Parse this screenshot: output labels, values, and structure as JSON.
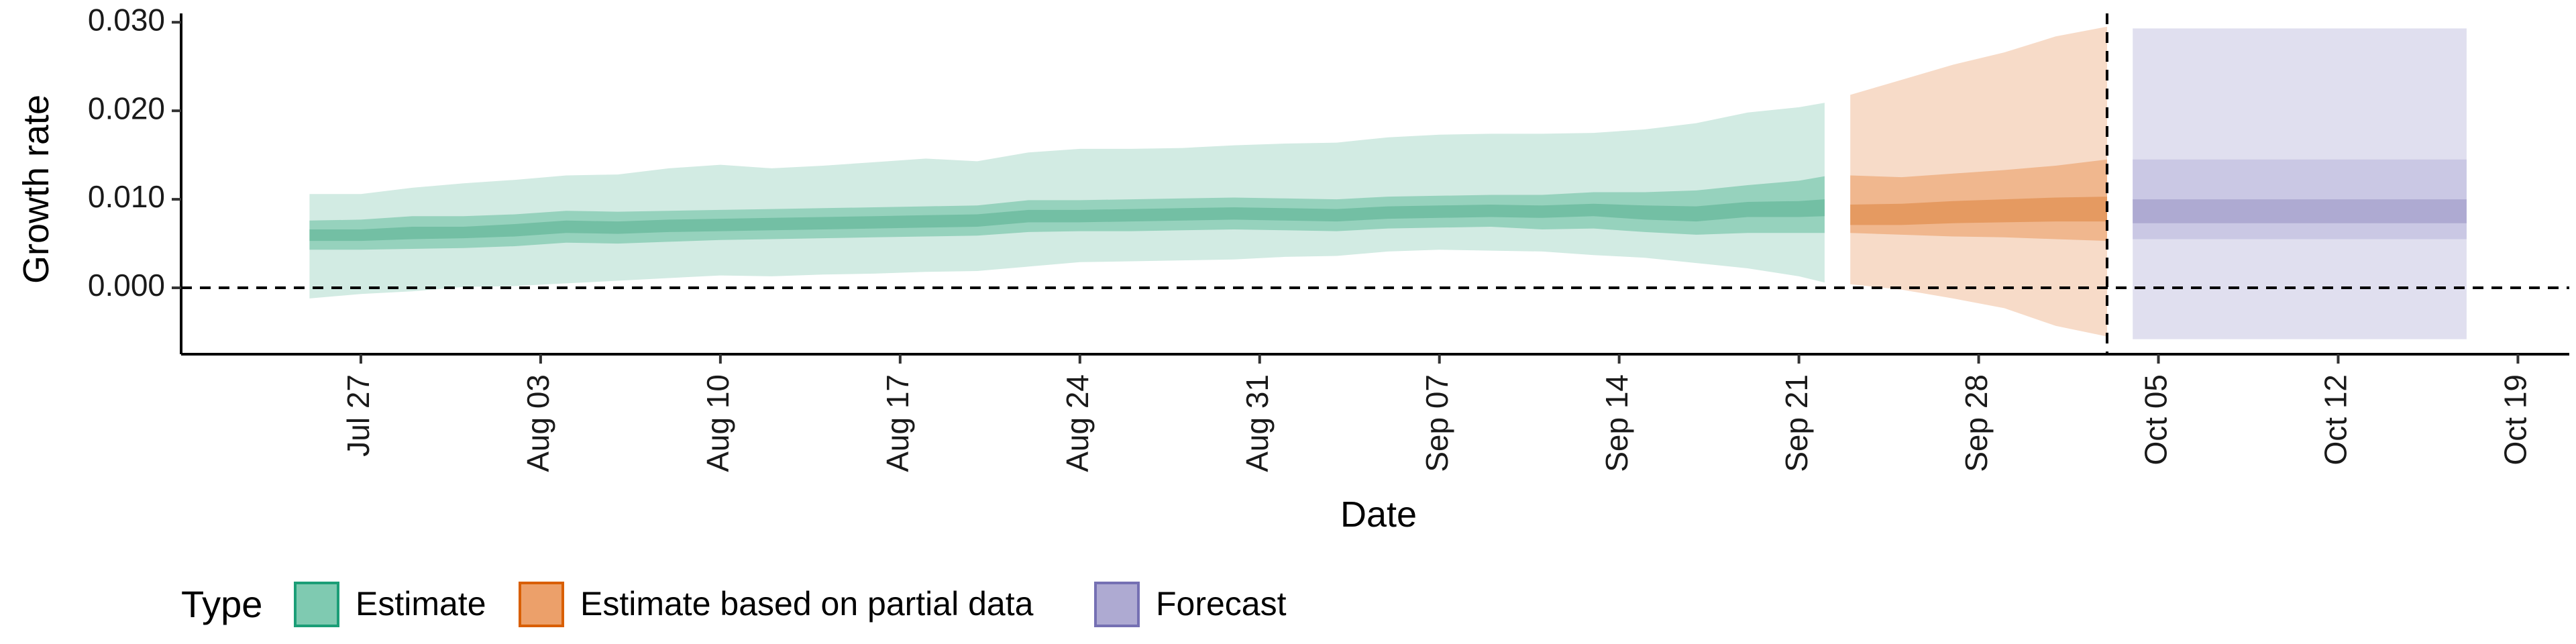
{
  "chart_data": {
    "type": "area",
    "xlabel": "Date",
    "ylabel": "Growth rate",
    "x_axis_type": "date",
    "xlim": [
      "2020-07-20",
      "2020-10-21"
    ],
    "ylim": [
      -0.0075,
      0.031
    ],
    "x_ticks": [
      {
        "date": "2020-07-27",
        "label": "Jul 27"
      },
      {
        "date": "2020-08-03",
        "label": "Aug 03"
      },
      {
        "date": "2020-08-10",
        "label": "Aug 10"
      },
      {
        "date": "2020-08-17",
        "label": "Aug 17"
      },
      {
        "date": "2020-08-24",
        "label": "Aug 24"
      },
      {
        "date": "2020-08-31",
        "label": "Aug 31"
      },
      {
        "date": "2020-09-07",
        "label": "Sep 07"
      },
      {
        "date": "2020-09-14",
        "label": "Sep 14"
      },
      {
        "date": "2020-09-21",
        "label": "Sep 21"
      },
      {
        "date": "2020-09-28",
        "label": "Sep 28"
      },
      {
        "date": "2020-10-05",
        "label": "Oct 05"
      },
      {
        "date": "2020-10-12",
        "label": "Oct 12"
      },
      {
        "date": "2020-10-19",
        "label": "Oct 19"
      }
    ],
    "y_ticks": [
      {
        "value": 0.0,
        "label": "0.000"
      },
      {
        "value": 0.01,
        "label": "0.010"
      },
      {
        "value": 0.02,
        "label": "0.020"
      },
      {
        "value": 0.03,
        "label": "0.030"
      }
    ],
    "reference_lines": [
      {
        "orientation": "horizontal",
        "value": 0.0,
        "style": "dashed"
      },
      {
        "orientation": "vertical",
        "date": "2020-10-03",
        "style": "dashed"
      }
    ],
    "grid": false,
    "legend": {
      "position": "bottom-left",
      "title": "Type",
      "items": [
        {
          "label": "Estimate",
          "fill": "#7fcab1",
          "border": "#1b9e77"
        },
        {
          "label": "Estimate based on partial data",
          "fill": "#eca06a",
          "border": "#d95f02"
        },
        {
          "label": "Forecast",
          "fill": "#aeaad2",
          "border": "#7570b3"
        }
      ]
    },
    "series": [
      {
        "name": "Estimate",
        "colors": {
          "outer": "#d2ebe3",
          "mid": "#96d2bd",
          "inner": "#73bfa4"
        },
        "points": [
          {
            "date": "2020-07-25",
            "median": 0.0059,
            "lower_50": 0.0043,
            "upper_50": 0.0076,
            "lower_20": 0.0053,
            "upper_20": 0.0066,
            "lower_90": -0.0012,
            "upper_90": 0.0106
          },
          {
            "date": "2020-07-27",
            "median": 0.0059,
            "lower_50": 0.0043,
            "upper_50": 0.0077,
            "lower_20": 0.0053,
            "upper_20": 0.0066,
            "lower_90": -0.0007,
            "upper_90": 0.0106
          },
          {
            "date": "2020-07-29",
            "median": 0.0062,
            "lower_50": 0.0044,
            "upper_50": 0.0081,
            "lower_20": 0.0055,
            "upper_20": 0.0069,
            "lower_90": -0.0004,
            "upper_90": 0.0113
          },
          {
            "date": "2020-07-31",
            "median": 0.0062,
            "lower_50": 0.0045,
            "upper_50": 0.0081,
            "lower_20": 0.0056,
            "upper_20": 0.0069,
            "lower_90": 0.0001,
            "upper_90": 0.0118
          },
          {
            "date": "2020-08-02",
            "median": 0.0065,
            "lower_50": 0.0047,
            "upper_50": 0.0083,
            "lower_20": 0.0058,
            "upper_20": 0.0072,
            "lower_90": 0.0002,
            "upper_90": 0.0122
          },
          {
            "date": "2020-08-04",
            "median": 0.0069,
            "lower_50": 0.0051,
            "upper_50": 0.0087,
            "lower_20": 0.0062,
            "upper_20": 0.0076,
            "lower_90": 0.0005,
            "upper_90": 0.0127
          },
          {
            "date": "2020-08-06",
            "median": 0.0068,
            "lower_50": 0.005,
            "upper_50": 0.0086,
            "lower_20": 0.0061,
            "upper_20": 0.0075,
            "lower_90": 0.0008,
            "upper_90": 0.0128
          },
          {
            "date": "2020-08-08",
            "median": 0.007,
            "lower_50": 0.0052,
            "upper_50": 0.0087,
            "lower_20": 0.0063,
            "upper_20": 0.0077,
            "lower_90": 0.0011,
            "upper_90": 0.0135
          },
          {
            "date": "2020-08-10",
            "median": 0.0071,
            "lower_50": 0.0054,
            "upper_50": 0.0088,
            "lower_20": 0.0064,
            "upper_20": 0.0078,
            "lower_90": 0.0014,
            "upper_90": 0.0139
          },
          {
            "date": "2020-08-12",
            "median": 0.0072,
            "lower_50": 0.0055,
            "upper_50": 0.0089,
            "lower_20": 0.0065,
            "upper_20": 0.0079,
            "lower_90": 0.0013,
            "upper_90": 0.0135
          },
          {
            "date": "2020-08-14",
            "median": 0.0073,
            "lower_50": 0.0056,
            "upper_50": 0.009,
            "lower_20": 0.0066,
            "upper_20": 0.008,
            "lower_90": 0.0015,
            "upper_90": 0.0138
          },
          {
            "date": "2020-08-16",
            "median": 0.0074,
            "lower_50": 0.0057,
            "upper_50": 0.0091,
            "lower_20": 0.0067,
            "upper_20": 0.0081,
            "lower_90": 0.0016,
            "upper_90": 0.0142
          },
          {
            "date": "2020-08-18",
            "median": 0.0075,
            "lower_50": 0.0058,
            "upper_50": 0.0092,
            "lower_20": 0.0068,
            "upper_20": 0.0082,
            "lower_90": 0.0018,
            "upper_90": 0.0146
          },
          {
            "date": "2020-08-20",
            "median": 0.0076,
            "lower_50": 0.0059,
            "upper_50": 0.0093,
            "lower_20": 0.0069,
            "upper_20": 0.0083,
            "lower_90": 0.0019,
            "upper_90": 0.0143
          },
          {
            "date": "2020-08-22",
            "median": 0.0081,
            "lower_50": 0.0063,
            "upper_50": 0.0099,
            "lower_20": 0.0074,
            "upper_20": 0.0088,
            "lower_90": 0.0024,
            "upper_90": 0.0153
          },
          {
            "date": "2020-08-24",
            "median": 0.0081,
            "lower_50": 0.0064,
            "upper_50": 0.0099,
            "lower_20": 0.0074,
            "upper_20": 0.0088,
            "lower_90": 0.0029,
            "upper_90": 0.0157
          },
          {
            "date": "2020-08-26",
            "median": 0.0082,
            "lower_50": 0.0064,
            "upper_50": 0.01,
            "lower_20": 0.0075,
            "upper_20": 0.0089,
            "lower_90": 0.003,
            "upper_90": 0.0157
          },
          {
            "date": "2020-08-28",
            "median": 0.0083,
            "lower_50": 0.0065,
            "upper_50": 0.0101,
            "lower_20": 0.0076,
            "upper_20": 0.009,
            "lower_90": 0.0031,
            "upper_90": 0.0158
          },
          {
            "date": "2020-08-30",
            "median": 0.0084,
            "lower_50": 0.0066,
            "upper_50": 0.0102,
            "lower_20": 0.0077,
            "upper_20": 0.0091,
            "lower_90": 0.0032,
            "upper_90": 0.0161
          },
          {
            "date": "2020-09-01",
            "median": 0.0083,
            "lower_50": 0.0065,
            "upper_50": 0.0101,
            "lower_20": 0.0076,
            "upper_20": 0.009,
            "lower_90": 0.0035,
            "upper_90": 0.0163
          },
          {
            "date": "2020-09-03",
            "median": 0.0082,
            "lower_50": 0.0064,
            "upper_50": 0.01,
            "lower_20": 0.0075,
            "upper_20": 0.0089,
            "lower_90": 0.0036,
            "upper_90": 0.0164
          },
          {
            "date": "2020-09-05",
            "median": 0.0085,
            "lower_50": 0.0067,
            "upper_50": 0.0103,
            "lower_20": 0.0078,
            "upper_20": 0.0092,
            "lower_90": 0.0041,
            "upper_90": 0.017
          },
          {
            "date": "2020-09-07",
            "median": 0.0086,
            "lower_50": 0.0068,
            "upper_50": 0.0104,
            "lower_20": 0.0079,
            "upper_20": 0.0093,
            "lower_90": 0.0043,
            "upper_90": 0.0173
          },
          {
            "date": "2020-09-09",
            "median": 0.0087,
            "lower_50": 0.0069,
            "upper_50": 0.0105,
            "lower_20": 0.008,
            "upper_20": 0.0094,
            "lower_90": 0.0042,
            "upper_90": 0.0174
          },
          {
            "date": "2020-09-11",
            "median": 0.0086,
            "lower_50": 0.0066,
            "upper_50": 0.0105,
            "lower_20": 0.0079,
            "upper_20": 0.0093,
            "lower_90": 0.0041,
            "upper_90": 0.0174
          },
          {
            "date": "2020-09-13",
            "median": 0.0088,
            "lower_50": 0.0067,
            "upper_50": 0.0108,
            "lower_20": 0.0081,
            "upper_20": 0.0095,
            "lower_90": 0.0037,
            "upper_90": 0.0175
          },
          {
            "date": "2020-09-15",
            "median": 0.0085,
            "lower_50": 0.0063,
            "upper_50": 0.0108,
            "lower_20": 0.0077,
            "upper_20": 0.0093,
            "lower_90": 0.0034,
            "upper_90": 0.0179
          },
          {
            "date": "2020-09-17",
            "median": 0.0083,
            "lower_50": 0.006,
            "upper_50": 0.011,
            "lower_20": 0.0075,
            "upper_20": 0.0092,
            "lower_90": 0.0028,
            "upper_90": 0.0186
          },
          {
            "date": "2020-09-19",
            "median": 0.0088,
            "lower_50": 0.0062,
            "upper_50": 0.0116,
            "lower_20": 0.008,
            "upper_20": 0.0097,
            "lower_90": 0.0022,
            "upper_90": 0.0198
          },
          {
            "date": "2020-09-21",
            "median": 0.0088,
            "lower_50": 0.0062,
            "upper_50": 0.0121,
            "lower_20": 0.008,
            "upper_20": 0.0098,
            "lower_90": 0.0013,
            "upper_90": 0.0204
          },
          {
            "date": "2020-09-22",
            "median": 0.009,
            "lower_50": 0.0062,
            "upper_50": 0.0126,
            "lower_20": 0.0081,
            "upper_20": 0.01,
            "lower_90": 0.0006,
            "upper_90": 0.0209
          }
        ]
      },
      {
        "name": "Estimate based on partial data",
        "colors": {
          "outer": "#f7dbc8",
          "mid": "#f0b78e",
          "inner": "#e59a61"
        },
        "points": [
          {
            "date": "2020-09-23",
            "median": 0.0082,
            "lower_50": 0.0062,
            "upper_50": 0.0127,
            "lower_20": 0.0071,
            "upper_20": 0.0094,
            "lower_90": 0.0004,
            "upper_90": 0.0218
          },
          {
            "date": "2020-09-25",
            "median": 0.0083,
            "lower_50": 0.006,
            "upper_50": 0.0125,
            "lower_20": 0.0071,
            "upper_20": 0.0095,
            "lower_90": -0.0002,
            "upper_90": 0.0235
          },
          {
            "date": "2020-09-27",
            "median": 0.0086,
            "lower_50": 0.0058,
            "upper_50": 0.0129,
            "lower_20": 0.0073,
            "upper_20": 0.0098,
            "lower_90": -0.0012,
            "upper_90": 0.0252
          },
          {
            "date": "2020-09-29",
            "median": 0.0087,
            "lower_50": 0.0057,
            "upper_50": 0.0133,
            "lower_20": 0.0074,
            "upper_20": 0.01,
            "lower_90": -0.0023,
            "upper_90": 0.0266
          },
          {
            "date": "2020-10-01",
            "median": 0.0088,
            "lower_50": 0.0055,
            "upper_50": 0.0138,
            "lower_20": 0.0075,
            "upper_20": 0.0102,
            "lower_90": -0.0043,
            "upper_90": 0.0284
          },
          {
            "date": "2020-10-03",
            "median": 0.0089,
            "lower_50": 0.0053,
            "upper_50": 0.0145,
            "lower_20": 0.0075,
            "upper_20": 0.0103,
            "lower_90": -0.0055,
            "upper_90": 0.0295
          }
        ]
      },
      {
        "name": "Forecast",
        "colors": {
          "outer": "#e0dfef",
          "mid": "#cac8e4",
          "inner": "#aeaad2"
        },
        "points": [
          {
            "date": "2020-10-04",
            "median": 0.0088,
            "lower_50": 0.0055,
            "upper_50": 0.0145,
            "lower_20": 0.0073,
            "upper_20": 0.01,
            "lower_90": -0.0058,
            "upper_90": 0.0293
          },
          {
            "date": "2020-10-17",
            "median": 0.0088,
            "lower_50": 0.0055,
            "upper_50": 0.0145,
            "lower_20": 0.0073,
            "upper_20": 0.01,
            "lower_90": -0.0058,
            "upper_90": 0.0293
          }
        ]
      }
    ]
  }
}
